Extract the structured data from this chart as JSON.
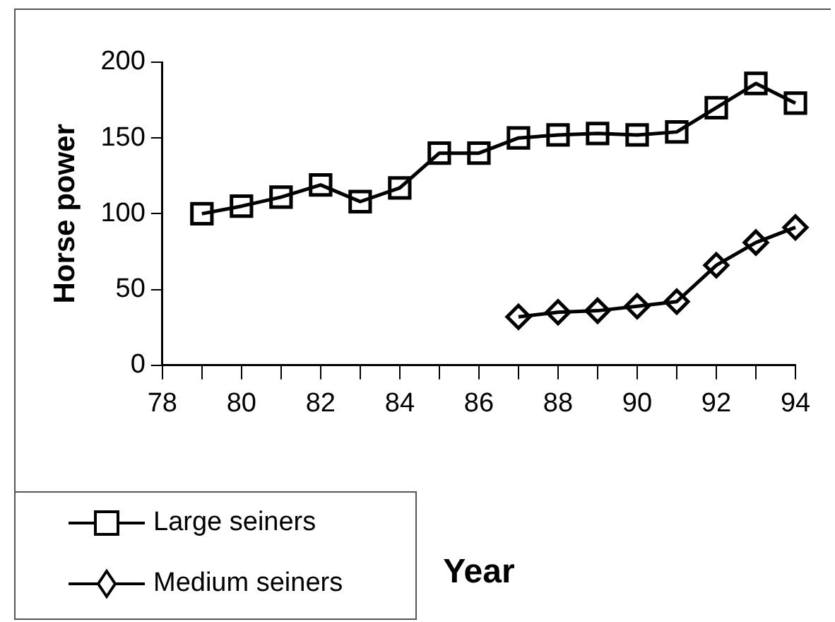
{
  "chart_data": {
    "type": "line",
    "xlabel": "Year",
    "ylabel": "Horse power",
    "x": [
      79,
      80,
      81,
      82,
      83,
      84,
      85,
      86,
      87,
      88,
      89,
      90,
      91,
      92,
      93,
      94
    ],
    "series": [
      {
        "name": "Large seiners",
        "color": "#000000",
        "marker": "square",
        "values": [
          100,
          105,
          111,
          119,
          108,
          117,
          140,
          140,
          150,
          152,
          153,
          152,
          154,
          170,
          186,
          173
        ]
      },
      {
        "name": "Medium seiners",
        "color": "#000000",
        "marker": "diamond",
        "values": [
          null,
          null,
          null,
          null,
          null,
          null,
          null,
          null,
          32,
          35,
          36,
          39,
          42,
          66,
          81,
          91
        ]
      }
    ],
    "xlim": [
      78,
      94
    ],
    "xticks": [
      78,
      {
        "value": 79,
        "label": null
      },
      80,
      {
        "value": 81,
        "label": null
      },
      82,
      {
        "value": 83,
        "label": null
      },
      84,
      {
        "value": 85,
        "label": null
      },
      86,
      {
        "value": 87,
        "label": null
      },
      88,
      {
        "value": 89,
        "label": null
      },
      90,
      {
        "value": 91,
        "label": null
      },
      92,
      {
        "value": 93,
        "label": null
      },
      94
    ],
    "ylim": [
      0,
      200
    ],
    "yticks": [
      0,
      50,
      100,
      150,
      200
    ],
    "grid": false,
    "legend": "bottom left",
    "line_style": "solid"
  }
}
